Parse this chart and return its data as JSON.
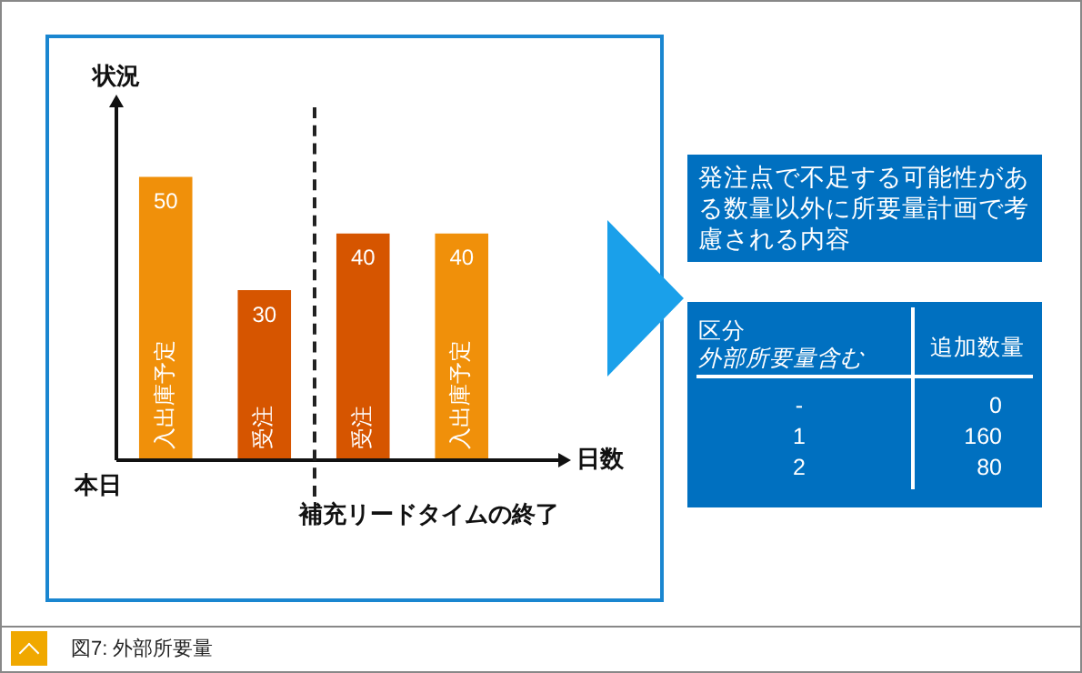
{
  "chart_data": [
    {
      "type": "bar",
      "xlabel": "日数",
      "ylabel": "状況",
      "categories": [
        "入出庫予定",
        "受注",
        "受注",
        "入出庫予定"
      ],
      "values": [
        50,
        30,
        40,
        40
      ],
      "colors": [
        "#f0900a",
        "#d65500",
        "#d65500",
        "#f0900a"
      ],
      "tick_labels": false,
      "data_labels": true,
      "annotations": [
        "本日",
        "補充リードタイムの終了",
        "図7: 外部所要量"
      ]
    },
    {
      "type": "other",
      "title": "発注点で不足する可能性がある数量以外に所要量計画で考慮される内容",
      "xlabel": "区分",
      "subtitle": "外部所要量含む",
      "ylabel": "追加数量",
      "categories": [
        "-",
        "1",
        "2"
      ],
      "values": [
        0,
        160,
        80
      ],
      "color": "#0070c0",
      "data_labels": true
    }
  ]
}
